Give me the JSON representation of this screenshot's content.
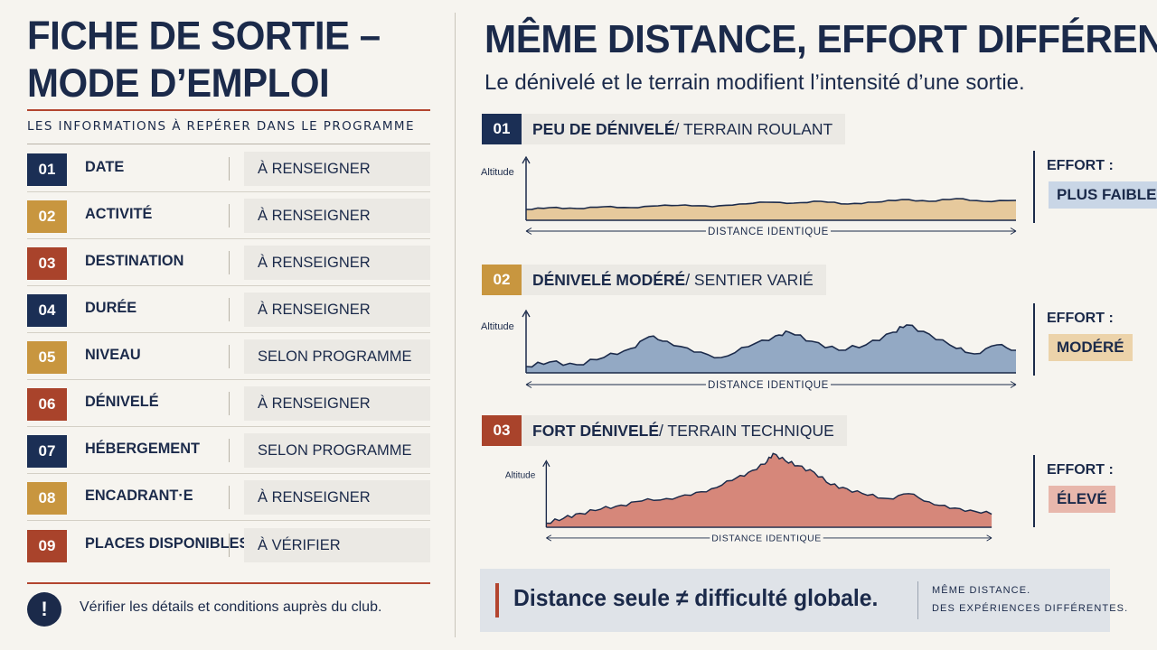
{
  "left": {
    "title_line1": "FICHE DE SORTIE –",
    "title_line2": "MODE D’EMPLOI",
    "subtitle": "LES INFORMATIONS À REPÉRER DANS LE PROGRAMME",
    "rows": [
      {
        "num": "01",
        "label": "DATE",
        "value": "À RENSEIGNER",
        "color": "#1b2f55"
      },
      {
        "num": "02",
        "label": "ACTIVITÉ",
        "value": "À RENSEIGNER",
        "color": "#c8963f"
      },
      {
        "num": "03",
        "label": "DESTINATION",
        "value": "À RENSEIGNER",
        "color": "#a9432b"
      },
      {
        "num": "04",
        "label": "DURÉE",
        "value": "À RENSEIGNER",
        "color": "#1b2f55"
      },
      {
        "num": "05",
        "label": "NIVEAU",
        "value": "SELON PROGRAMME",
        "color": "#c8963f"
      },
      {
        "num": "06",
        "label": "DÉNIVELÉ",
        "value": "À RENSEIGNER",
        "color": "#a9432b"
      },
      {
        "num": "07",
        "label": "HÉBERGEMENT",
        "value": "SELON PROGRAMME",
        "color": "#1b2f55"
      },
      {
        "num": "08",
        "label": "ENCADRANT·E",
        "value": "À RENSEIGNER",
        "color": "#c8963f"
      },
      {
        "num": "09",
        "label": "PLACES DISPONIBLES",
        "value": "À VÉRIFIER",
        "color": "#a9432b"
      }
    ],
    "warning_icon": "!",
    "warning_text": "Vérifier les détails et conditions auprès du club."
  },
  "right": {
    "title": "MÊME DISTANCE, EFFORT DIFFÉRENT",
    "subtitle": "Le dénivelé et le terrain modifient l’intensité d’une sortie.",
    "sections": [
      {
        "num": "01",
        "bold": "PEU DE DÉNIVELÉ",
        "rest": " / TERRAIN ROULANT",
        "y_label": "Altitude",
        "x_label": "DISTANCE IDENTIQUE",
        "effort_label": "EFFORT :",
        "effort_value": "PLUS FAIBLE",
        "color": "#1b2f55",
        "fill": "#e6c99c",
        "badge": "#c9d6e6"
      },
      {
        "num": "02",
        "bold": "DÉNIVELÉ MODÉRÉ",
        "rest": " / SENTIER VARIÉ",
        "y_label": "Altitude",
        "x_label": "DISTANCE IDENTIQUE",
        "effort_label": "EFFORT :",
        "effort_value": "MODÉRÉ",
        "color": "#c8963f",
        "fill": "#93a9c4",
        "badge": "#ecd3aa"
      },
      {
        "num": "03",
        "bold": "FORT DÉNIVELÉ",
        "rest": " / TERRAIN TECHNIQUE",
        "y_label": "Altitude",
        "x_label": "DISTANCE IDENTIQUE",
        "effort_label": "EFFORT :",
        "effort_value": "ÉLEVÉ",
        "color": "#a9432b",
        "fill": "#d6877a",
        "badge": "#e8b7ac"
      }
    ],
    "banner": {
      "main": "Distance seule ≠ difficulté globale.",
      "small_line1": "MÊME DISTANCE.",
      "small_line2": "DES EXPÉRIENCES DIFFÉRENTES."
    }
  }
}
